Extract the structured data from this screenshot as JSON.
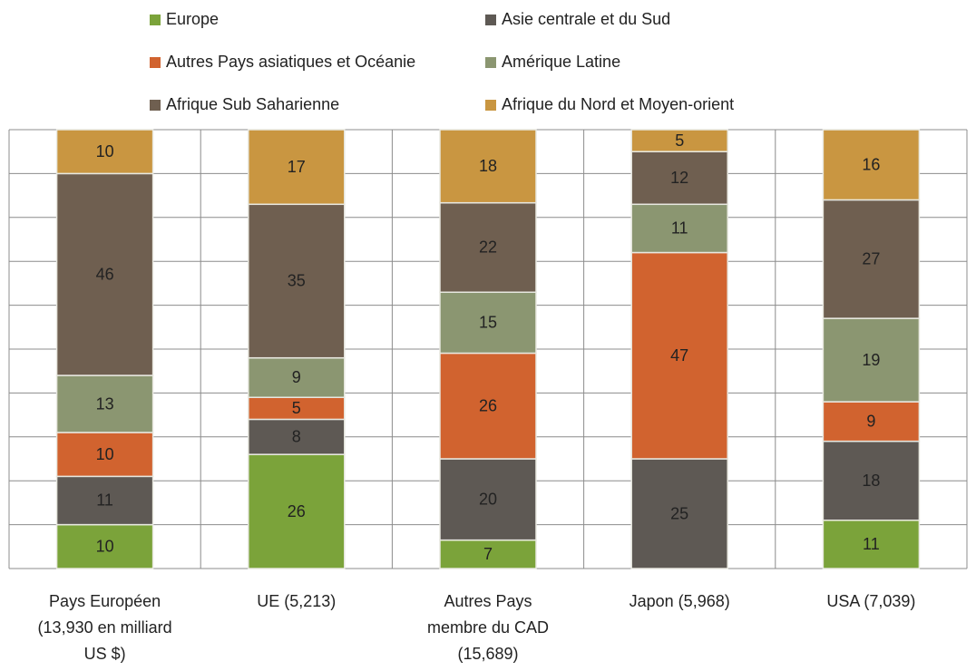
{
  "chart_data": {
    "type": "bar",
    "stacking": "percent",
    "categories": [
      "Pays Européen\n(13,930 en milliard\nUS $)",
      "UE (5,213)",
      "Autres Pays\nmembre du CAD\n(15,689)",
      "Japon (5,968)",
      "USA (7,039)"
    ],
    "series": [
      {
        "name": "Europe",
        "color": "#7ba33a",
        "values": [
          10,
          26,
          7,
          0,
          11
        ]
      },
      {
        "name": "Asie centrale et du Sud",
        "color": "#5e5954",
        "values": [
          11,
          8,
          20,
          25,
          18
        ]
      },
      {
        "name": "Autres Pays asiatiques et Océanie",
        "color": "#d1632f",
        "values": [
          10,
          5,
          26,
          47,
          9
        ]
      },
      {
        "name": "Amérique Latine",
        "color": "#8b9671",
        "values": [
          13,
          9,
          15,
          11,
          19
        ]
      },
      {
        "name": "Afrique Sub Saharienne",
        "color": "#6f5f50",
        "values": [
          46,
          35,
          22,
          12,
          27
        ]
      },
      {
        "name": "Afrique du Nord et Moyen-orient",
        "color": "#c99641",
        "values": [
          10,
          17,
          18,
          5,
          16
        ]
      }
    ],
    "ylim": [
      0,
      100
    ],
    "yticks": [
      0,
      10,
      20,
      30,
      40,
      50,
      60,
      70,
      80,
      90,
      100
    ],
    "grid": true
  }
}
